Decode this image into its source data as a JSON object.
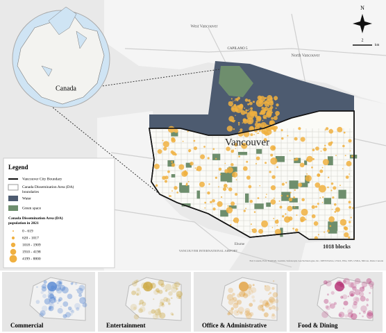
{
  "map": {
    "labels": {
      "west_vancouver": "West Vancouver",
      "north_vancouver": "North Vancouver",
      "capilano": "CAPILANO 5",
      "city": "Vancouver",
      "airport": "VANCOUVER INTERNATIONAL AIRPORT",
      "eburne": "Eburne",
      "blocks": "1018 blocks",
      "attribution": "Esri Canada, Esri, TomTom, Garmin, SafeGraph, GeoTechnologies, Inc, METI/NASA, USGS, EPA, NPS, USDA, NRCan, Parks Canada"
    },
    "compass": "N",
    "scale": {
      "value": "2",
      "unit": "km"
    },
    "inset": {
      "label": "Canada"
    },
    "legend": {
      "title": "Legend",
      "items": [
        "Vancouver City Boundary",
        "Canada Dissemination Area (DA) boundaries",
        "Water",
        "Green space"
      ],
      "population_title": "Canada Dissemination Area (DA) population in 2021",
      "population_classes": [
        "0 - 619",
        "620 - 1017",
        "1018 - 1909",
        "1910 - 4198",
        "4199 - 8800"
      ]
    },
    "panels": [
      "Commercial",
      "Entertainment",
      "Office & Administrative",
      "Food & Dining"
    ]
  }
}
